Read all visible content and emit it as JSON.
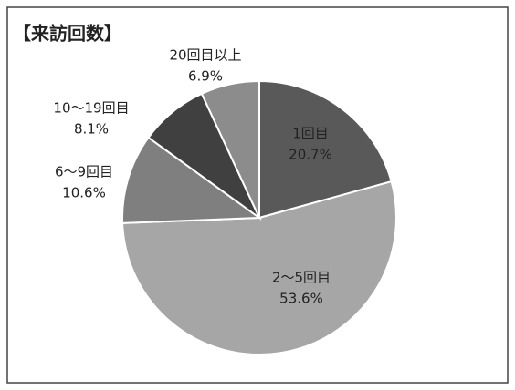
{
  "chart_data": {
    "type": "pie",
    "title": "【来訪回数】",
    "categories": [
      "1回目",
      "2～5回目",
      "6～9回目",
      "10～19回目",
      "20回目以上"
    ],
    "values": [
      20.7,
      53.6,
      10.6,
      8.1,
      6.9
    ],
    "value_labels": [
      "20.7%",
      "53.6%",
      "10.6%",
      "8.1%",
      "6.9%"
    ],
    "colors": [
      "#595959",
      "#a6a6a6",
      "#7f7f7f",
      "#404040",
      "#8c8c8c"
    ]
  }
}
